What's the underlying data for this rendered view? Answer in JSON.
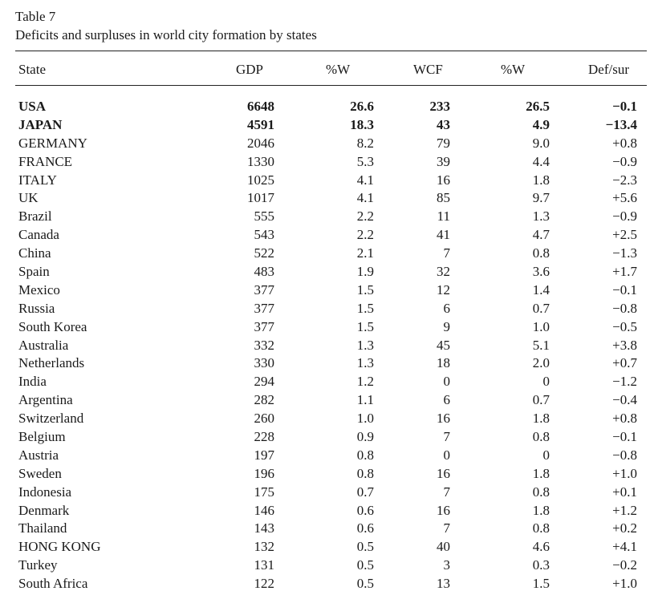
{
  "table": {
    "number": "Table 7",
    "title": "Deficits and surpluses in world city formation by states",
    "columns": [
      "State",
      "GDP",
      "%W",
      "WCF",
      "%W",
      "Def/sur"
    ],
    "rows": [
      {
        "state": "USA",
        "gdp": "6648",
        "w1": "26.6",
        "wcf": "233",
        "w2": "26.5",
        "def": "−0.1",
        "bold": true
      },
      {
        "state": "JAPAN",
        "gdp": "4591",
        "w1": "18.3",
        "wcf": "43",
        "w2": "4.9",
        "def": "−13.4",
        "bold": true
      },
      {
        "state": "GERMANY",
        "gdp": "2046",
        "w1": "8.2",
        "wcf": "79",
        "w2": "9.0",
        "def": "+0.8",
        "bold": false
      },
      {
        "state": "FRANCE",
        "gdp": "1330",
        "w1": "5.3",
        "wcf": "39",
        "w2": "4.4",
        "def": "−0.9",
        "bold": false
      },
      {
        "state": "ITALY",
        "gdp": "1025",
        "w1": "4.1",
        "wcf": "16",
        "w2": "1.8",
        "def": "−2.3",
        "bold": false
      },
      {
        "state": "UK",
        "gdp": "1017",
        "w1": "4.1",
        "wcf": "85",
        "w2": "9.7",
        "def": "+5.6",
        "bold": false
      },
      {
        "state": "Brazil",
        "gdp": "555",
        "w1": "2.2",
        "wcf": "11",
        "w2": "1.3",
        "def": "−0.9",
        "bold": false
      },
      {
        "state": "Canada",
        "gdp": "543",
        "w1": "2.2",
        "wcf": "41",
        "w2": "4.7",
        "def": "+2.5",
        "bold": false
      },
      {
        "state": "China",
        "gdp": "522",
        "w1": "2.1",
        "wcf": "7",
        "w2": "0.8",
        "def": "−1.3",
        "bold": false
      },
      {
        "state": "Spain",
        "gdp": "483",
        "w1": "1.9",
        "wcf": "32",
        "w2": "3.6",
        "def": "+1.7",
        "bold": false
      },
      {
        "state": "Mexico",
        "gdp": "377",
        "w1": "1.5",
        "wcf": "12",
        "w2": "1.4",
        "def": "−0.1",
        "bold": false
      },
      {
        "state": "Russia",
        "gdp": "377",
        "w1": "1.5",
        "wcf": "6",
        "w2": "0.7",
        "def": "−0.8",
        "bold": false
      },
      {
        "state": "South Korea",
        "gdp": "377",
        "w1": "1.5",
        "wcf": "9",
        "w2": "1.0",
        "def": "−0.5",
        "bold": false
      },
      {
        "state": "Australia",
        "gdp": "332",
        "w1": "1.3",
        "wcf": "45",
        "w2": "5.1",
        "def": "+3.8",
        "bold": false
      },
      {
        "state": "Netherlands",
        "gdp": "330",
        "w1": "1.3",
        "wcf": "18",
        "w2": "2.0",
        "def": "+0.7",
        "bold": false
      },
      {
        "state": "India",
        "gdp": "294",
        "w1": "1.2",
        "wcf": "0",
        "w2": "0",
        "def": "−1.2",
        "bold": false
      },
      {
        "state": "Argentina",
        "gdp": "282",
        "w1": "1.1",
        "wcf": "6",
        "w2": "0.7",
        "def": "−0.4",
        "bold": false
      },
      {
        "state": "Switzerland",
        "gdp": "260",
        "w1": "1.0",
        "wcf": "16",
        "w2": "1.8",
        "def": "+0.8",
        "bold": false
      },
      {
        "state": "Belgium",
        "gdp": "228",
        "w1": "0.9",
        "wcf": "7",
        "w2": "0.8",
        "def": "−0.1",
        "bold": false
      },
      {
        "state": "Austria",
        "gdp": "197",
        "w1": "0.8",
        "wcf": "0",
        "w2": "0",
        "def": "−0.8",
        "bold": false
      },
      {
        "state": "Sweden",
        "gdp": "196",
        "w1": "0.8",
        "wcf": "16",
        "w2": "1.8",
        "def": "+1.0",
        "bold": false
      },
      {
        "state": "Indonesia",
        "gdp": "175",
        "w1": "0.7",
        "wcf": "7",
        "w2": "0.8",
        "def": "+0.1",
        "bold": false
      },
      {
        "state": "Denmark",
        "gdp": "146",
        "w1": "0.6",
        "wcf": "16",
        "w2": "1.8",
        "def": "+1.2",
        "bold": false
      },
      {
        "state": "Thailand",
        "gdp": "143",
        "w1": "0.6",
        "wcf": "7",
        "w2": "0.8",
        "def": "+0.2",
        "bold": false
      },
      {
        "state": "HONG KONG",
        "gdp": "132",
        "w1": "0.5",
        "wcf": "40",
        "w2": "4.6",
        "def": "+4.1",
        "bold": false
      },
      {
        "state": "Turkey",
        "gdp": "131",
        "w1": "0.5",
        "wcf": "3",
        "w2": "0.3",
        "def": "−0.2",
        "bold": false
      },
      {
        "state": "South Africa",
        "gdp": "122",
        "w1": "0.5",
        "wcf": "13",
        "w2": "1.5",
        "def": "+1.0",
        "bold": false
      }
    ]
  }
}
